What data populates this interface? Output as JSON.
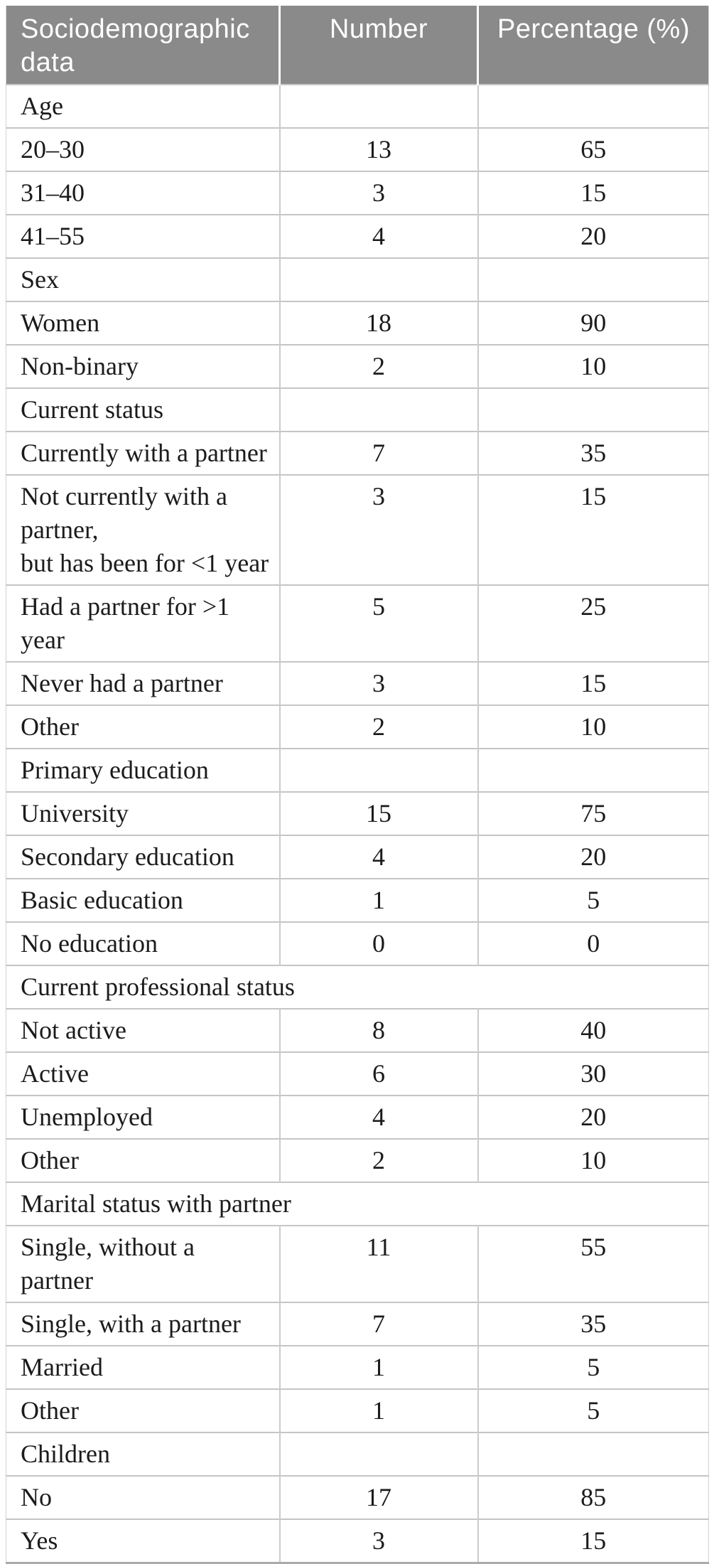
{
  "colors": {
    "header_bg": "#8a8a8a",
    "header_text": "#ffffff",
    "body_text": "#1b1b1b",
    "grid_line": "#c5c5c5",
    "outer_bottom_border": "#ababab"
  },
  "header": {
    "columns": [
      "Sociodemographic data",
      "Number",
      "Percentage (%)"
    ]
  },
  "table": {
    "rows": [
      {
        "type": "section",
        "label": "Age",
        "number": "",
        "percentage": ""
      },
      {
        "type": "data",
        "label": "20–30",
        "number": "13",
        "percentage": "65"
      },
      {
        "type": "data",
        "label": "31–40",
        "number": "3",
        "percentage": "15"
      },
      {
        "type": "data",
        "label": "41–55",
        "number": "4",
        "percentage": "20"
      },
      {
        "type": "section",
        "label": "Sex",
        "number": "",
        "percentage": ""
      },
      {
        "type": "data",
        "label": "Women",
        "number": "18",
        "percentage": "90"
      },
      {
        "type": "data",
        "label": "Non-binary",
        "number": "2",
        "percentage": "10"
      },
      {
        "type": "section",
        "label": "Current status",
        "number": "",
        "percentage": ""
      },
      {
        "type": "data",
        "label": "Currently with a partner",
        "number": "7",
        "percentage": "35"
      },
      {
        "type": "data",
        "label": "Not currently with a partner,\nbut has been for <1 year",
        "number": "3",
        "percentage": "15"
      },
      {
        "type": "data",
        "label": "Had a partner for >1 year",
        "number": "5",
        "percentage": "25"
      },
      {
        "type": "data",
        "label": "Never had a partner",
        "number": "3",
        "percentage": "15"
      },
      {
        "type": "data",
        "label": "Other",
        "number": "2",
        "percentage": "10"
      },
      {
        "type": "section",
        "label": "Primary education",
        "number": "",
        "percentage": ""
      },
      {
        "type": "data",
        "label": "University",
        "number": "15",
        "percentage": "75"
      },
      {
        "type": "data",
        "label": "Secondary education",
        "number": "4",
        "percentage": "20"
      },
      {
        "type": "data",
        "label": "Basic education",
        "number": "1",
        "percentage": "5"
      },
      {
        "type": "data",
        "label": "No education",
        "number": "0",
        "percentage": "0"
      },
      {
        "type": "section",
        "label": "Current professional status",
        "number": "",
        "percentage": "",
        "colspan": 2
      },
      {
        "type": "data",
        "label": "Not active",
        "number": "8",
        "percentage": "40"
      },
      {
        "type": "data",
        "label": "Active",
        "number": "6",
        "percentage": "30"
      },
      {
        "type": "data",
        "label": "Unemployed",
        "number": "4",
        "percentage": "20"
      },
      {
        "type": "data",
        "label": "Other",
        "number": "2",
        "percentage": "10"
      },
      {
        "type": "section",
        "label": "Marital status with partner",
        "number": "",
        "percentage": "",
        "colspan": 2
      },
      {
        "type": "data",
        "label": "Single, without a partner",
        "number": "11",
        "percentage": "55"
      },
      {
        "type": "data",
        "label": "Single, with a partner",
        "number": "7",
        "percentage": "35"
      },
      {
        "type": "data",
        "label": "Married",
        "number": "1",
        "percentage": "5"
      },
      {
        "type": "data",
        "label": "Other",
        "number": "1",
        "percentage": "5"
      },
      {
        "type": "section",
        "label": "Children",
        "number": "",
        "percentage": ""
      },
      {
        "type": "data",
        "label": "No",
        "number": "17",
        "percentage": "85"
      },
      {
        "type": "data",
        "label": "Yes",
        "number": "3",
        "percentage": "15"
      }
    ]
  }
}
